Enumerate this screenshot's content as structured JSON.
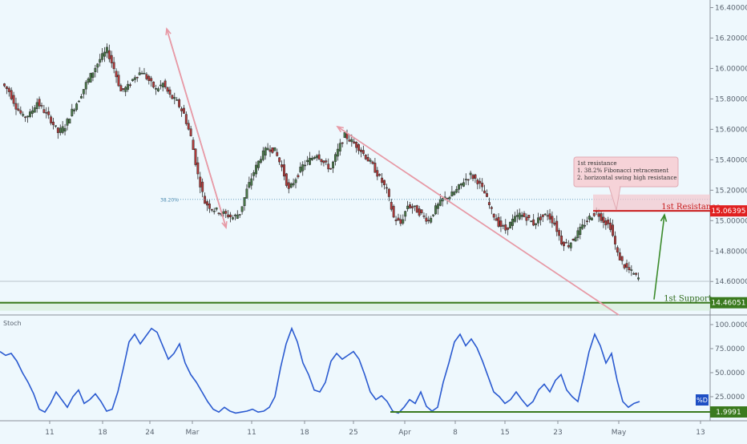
{
  "chart_data": [
    {
      "type": "candlestick",
      "instrument_note": "",
      "y_axis": {
        "ticks": [
          "16.40000",
          "16.20000",
          "16.00000",
          "15.80000",
          "15.60000",
          "15.40000",
          "15.20000",
          "15.00000",
          "14.80000",
          "14.60000"
        ],
        "range": [
          14.38,
          16.45
        ]
      },
      "x_axis": {
        "ticks": [
          "11",
          "18",
          "24",
          "Mar",
          "11",
          "18",
          "25",
          "Apr",
          "8",
          "15",
          "23",
          "May",
          "13"
        ]
      },
      "close_path": [
        15.9,
        15.85,
        15.75,
        15.68,
        15.7,
        15.78,
        15.72,
        15.66,
        15.58,
        15.62,
        15.72,
        15.8,
        15.9,
        15.98,
        16.06,
        16.12,
        16.0,
        15.85,
        15.88,
        15.95,
        15.98,
        15.92,
        15.86,
        15.9,
        15.82,
        15.78,
        15.7,
        15.55,
        15.3,
        15.12,
        15.08,
        15.06,
        15.04,
        15.02,
        15.05,
        15.2,
        15.32,
        15.42,
        15.48,
        15.46,
        15.35,
        15.2,
        15.28,
        15.36,
        15.4,
        15.44,
        15.38,
        15.34,
        15.46,
        15.56,
        15.52,
        15.48,
        15.42,
        15.36,
        15.28,
        15.2,
        15.02,
        14.98,
        15.1,
        15.08,
        15.04,
        15.0,
        15.08,
        15.14,
        15.16,
        15.2,
        15.26,
        15.3,
        15.26,
        15.18,
        15.06,
        14.98,
        14.94,
        15.0,
        15.04,
        15.02,
        14.98,
        15.02,
        15.04,
        14.98,
        14.86,
        14.84,
        14.9,
        14.96,
        15.02,
        15.06,
        15.0,
        14.96,
        14.78,
        14.7,
        14.66,
        14.62
      ],
      "annotations": {
        "fib_label": "38.20%",
        "resistance_label": "1st Resistance",
        "resistance_value": "15.06395",
        "support_label": "1st Support",
        "support_value": "14.46051",
        "note_lines": [
          "1st resistance",
          "1. 38.2% Fibonacci retracement",
          "2. horizontal swing high resistance"
        ],
        "fib_level": 15.14,
        "resistance_level": 15.06395,
        "support_level": 14.46051
      }
    },
    {
      "type": "line",
      "title": "Stoch",
      "y_axis": {
        "ticks": [
          "100.0000",
          "75.0000",
          "50.0000",
          "25.0000"
        ],
        "range": [
          0,
          110
        ]
      },
      "series": [
        {
          "name": "%D",
          "values": [
            72,
            68,
            70,
            62,
            50,
            40,
            28,
            12,
            9,
            18,
            30,
            22,
            14,
            25,
            32,
            18,
            22,
            28,
            20,
            10,
            12,
            30,
            55,
            82,
            90,
            80,
            88,
            96,
            92,
            78,
            64,
            70,
            80,
            60,
            48,
            40,
            30,
            20,
            12,
            9,
            14,
            10,
            8,
            9,
            10,
            12,
            9,
            10,
            14,
            25,
            55,
            80,
            96,
            82,
            60,
            48,
            32,
            30,
            40,
            62,
            70,
            64,
            68,
            72,
            64,
            48,
            30,
            22,
            26,
            20,
            10,
            8,
            14,
            22,
            18,
            30,
            15,
            10,
            14,
            40,
            60,
            82,
            90,
            78,
            85,
            76,
            62,
            46,
            30,
            25,
            18,
            22,
            30,
            22,
            15,
            20,
            32,
            38,
            30,
            42,
            48,
            32,
            25,
            20,
            45,
            72,
            90,
            78,
            60,
            70,
            42,
            20,
            14,
            18,
            20
          ],
          "marks": {
            "last_label": "%D"
          }
        }
      ],
      "support_value": "1.9991",
      "support_level": 4
    }
  ]
}
